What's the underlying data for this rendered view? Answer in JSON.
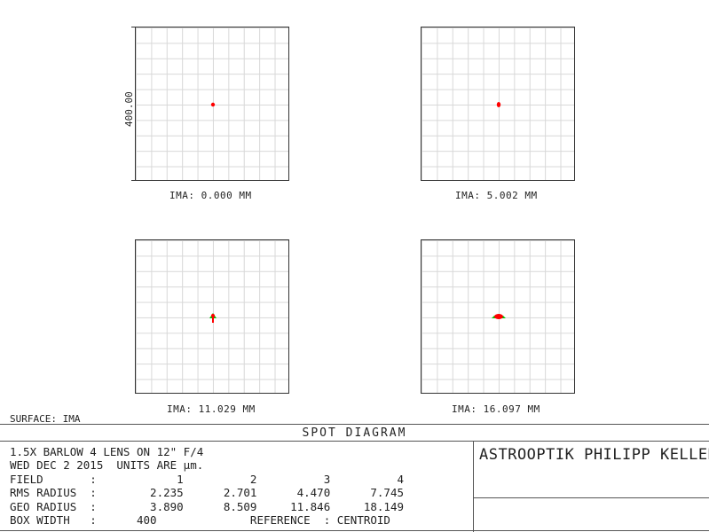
{
  "plots": [
    {
      "caption": "IMA: 0.000 MM"
    },
    {
      "caption": "IMA: 5.002 MM"
    },
    {
      "caption": "IMA: 11.029 MM"
    },
    {
      "caption": "IMA: 16.097 MM"
    }
  ],
  "y_axis_label": "400.00",
  "surface_label": "SURFACE: IMA",
  "title": "SPOT DIAGRAM",
  "info": {
    "line1": "1.5X BARLOW 4 LENS ON 12\" F/4",
    "line2": "WED DEC 2 2015  UNITS ARE µm.",
    "field_row": "FIELD       :            1          2          3          4",
    "rms_row": "RMS RADIUS  :        2.235      2.701      4.470      7.745",
    "geo_row": "GEO RADIUS  :        3.890      8.509     11.846     18.149",
    "box_row": "BOX WIDTH   :      400              REFERENCE  : CENTROID"
  },
  "company": "ASTROOPTIK PHILIPP KELLER",
  "colors": {
    "spot_primary": "#ff0000",
    "spot_secondary": "#00c000",
    "grid": "#d8d8d8"
  }
}
